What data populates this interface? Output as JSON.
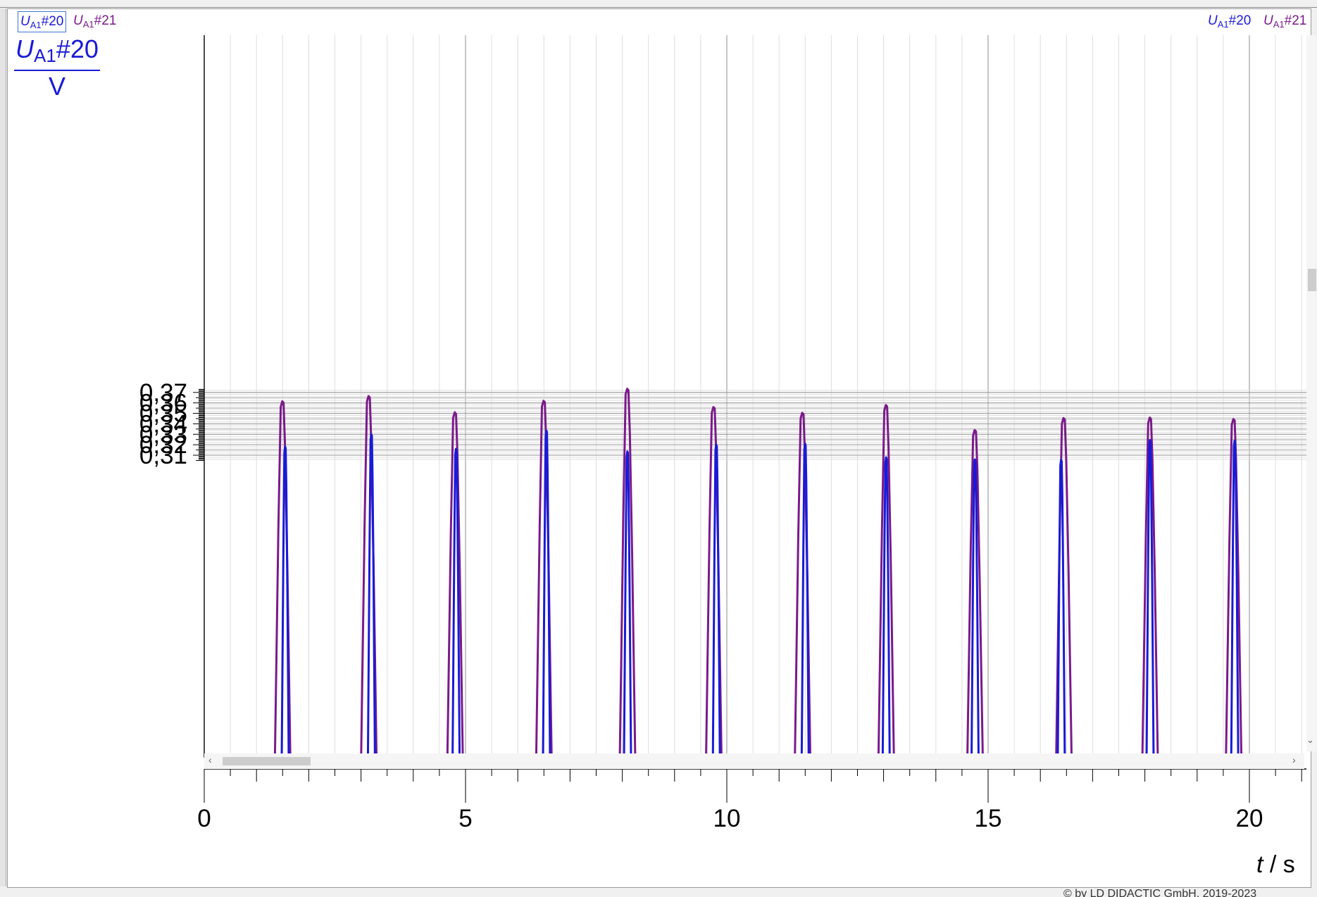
{
  "window": {
    "legend_left": [
      {
        "label": "U",
        "sub": "A1",
        "suffix": "#20",
        "color": "#1a1ad6"
      },
      {
        "label": "U",
        "sub": "A1",
        "suffix": "#21",
        "color": "#7a1a8a"
      }
    ],
    "legend_right": [
      {
        "label": "U",
        "sub": "A1",
        "suffix": "#20",
        "color": "#1a1ad6"
      },
      {
        "label": "U",
        "sub": "A1",
        "suffix": "#21",
        "color": "#7a1a8a"
      }
    ],
    "copyright": "© by LD DIDACTIC GmbH, 2019-2023"
  },
  "axes": {
    "ylabel_num": "U",
    "ylabel_sub": "A1",
    "ylabel_suffix": "#20",
    "ylabel_den": "V",
    "xlabel_var": "t",
    "xlabel_unit": " / s"
  },
  "chart_data": {
    "type": "line",
    "xlim": [
      0,
      21
    ],
    "ylim": [
      0.3045,
      0.3735
    ],
    "x_ticks": [
      0,
      5,
      10,
      15,
      20
    ],
    "x_tick_labels": [
      "0",
      "5",
      "10",
      "15",
      "20"
    ],
    "y_ticks": [
      0.31,
      0.32,
      0.33,
      0.34,
      0.35,
      0.36,
      0.37
    ],
    "y_tick_labels": [
      "0,31",
      "0,32",
      "0,33",
      "0,34",
      "0,35",
      "0,36",
      "0,37"
    ],
    "grid": true,
    "colors": {
      "series_21": "#7a1a8a",
      "series_20": "#1a1ad6",
      "grid_major": "#a8a8a8",
      "grid_minor": "#dedede"
    },
    "series": [
      {
        "name": "UA1#21",
        "peaks": [
          {
            "t": 1.5,
            "v": 0.3615
          },
          {
            "t": 3.15,
            "v": 0.3665
          },
          {
            "t": 4.8,
            "v": 0.351
          },
          {
            "t": 6.5,
            "v": 0.362
          },
          {
            "t": 8.1,
            "v": 0.3735
          },
          {
            "t": 9.75,
            "v": 0.356
          },
          {
            "t": 11.45,
            "v": 0.3505
          },
          {
            "t": 13.05,
            "v": 0.358
          },
          {
            "t": 14.75,
            "v": 0.334
          },
          {
            "t": 16.45,
            "v": 0.3455
          },
          {
            "t": 18.1,
            "v": 0.346
          },
          {
            "t": 19.7,
            "v": 0.3445
          }
        ]
      },
      {
        "name": "UA1#20",
        "peaks": [
          {
            "t": 1.55,
            "v": 0.318
          },
          {
            "t": 3.2,
            "v": 0.33
          },
          {
            "t": 4.82,
            "v": 0.316
          },
          {
            "t": 6.55,
            "v": 0.3335
          },
          {
            "t": 8.1,
            "v": 0.3135
          },
          {
            "t": 9.8,
            "v": 0.32
          },
          {
            "t": 11.5,
            "v": 0.321
          },
          {
            "t": 13.05,
            "v": 0.308
          },
          {
            "t": 14.75,
            "v": 0.306
          },
          {
            "t": 16.4,
            "v": 0.3055
          },
          {
            "t": 18.1,
            "v": 0.3245
          },
          {
            "t": 19.72,
            "v": 0.324
          }
        ]
      }
    ]
  }
}
